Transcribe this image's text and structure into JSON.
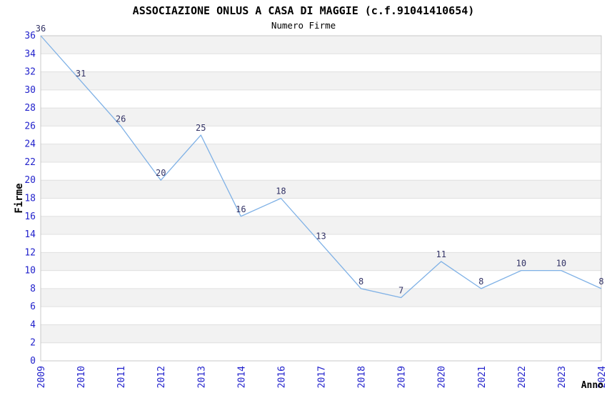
{
  "title": "ASSOCIAZIONE ONLUS A CASA DI MAGGIE (c.f.91041410654)",
  "subtitle": "Numero Firme",
  "chart_data": {
    "type": "line",
    "title": "ASSOCIAZIONE ONLUS A CASA DI MAGGIE (c.f.91041410654)",
    "subtitle": "Numero Firme",
    "xlabel": "Anno",
    "ylabel": "Firme",
    "categories": [
      "2009",
      "2010",
      "2011",
      "2012",
      "2013",
      "2014",
      "2016",
      "2017",
      "2018",
      "2019",
      "2020",
      "2021",
      "2022",
      "2023",
      "2024"
    ],
    "values": [
      36,
      31,
      26,
      20,
      25,
      16,
      18,
      13,
      8,
      7,
      11,
      8,
      10,
      10,
      8
    ],
    "point_labels": [
      "36",
      "31",
      "26",
      "20",
      "25",
      "16",
      "18",
      "13",
      "8",
      "7",
      "11",
      "8",
      "10",
      "10",
      "8"
    ],
    "ylim": [
      0,
      36
    ],
    "ytick_step": 2,
    "ytick_labels": [
      "0",
      "2",
      "4",
      "6",
      "8",
      "10",
      "12",
      "14",
      "16",
      "18",
      "20",
      "22",
      "24",
      "26",
      "28",
      "30",
      "32",
      "34",
      "36"
    ],
    "grid": "horizontal",
    "band_fill": true,
    "legend_position": "none",
    "colors": {
      "line": "#7FB1E6",
      "point_label": "#333366",
      "tick_label": "#2222CC",
      "axis_label": "#000000",
      "band": "#F2F2F2",
      "gridline": "#E0E0E0",
      "frame": "#C8C8C8",
      "background": "#FFFFFF"
    }
  }
}
